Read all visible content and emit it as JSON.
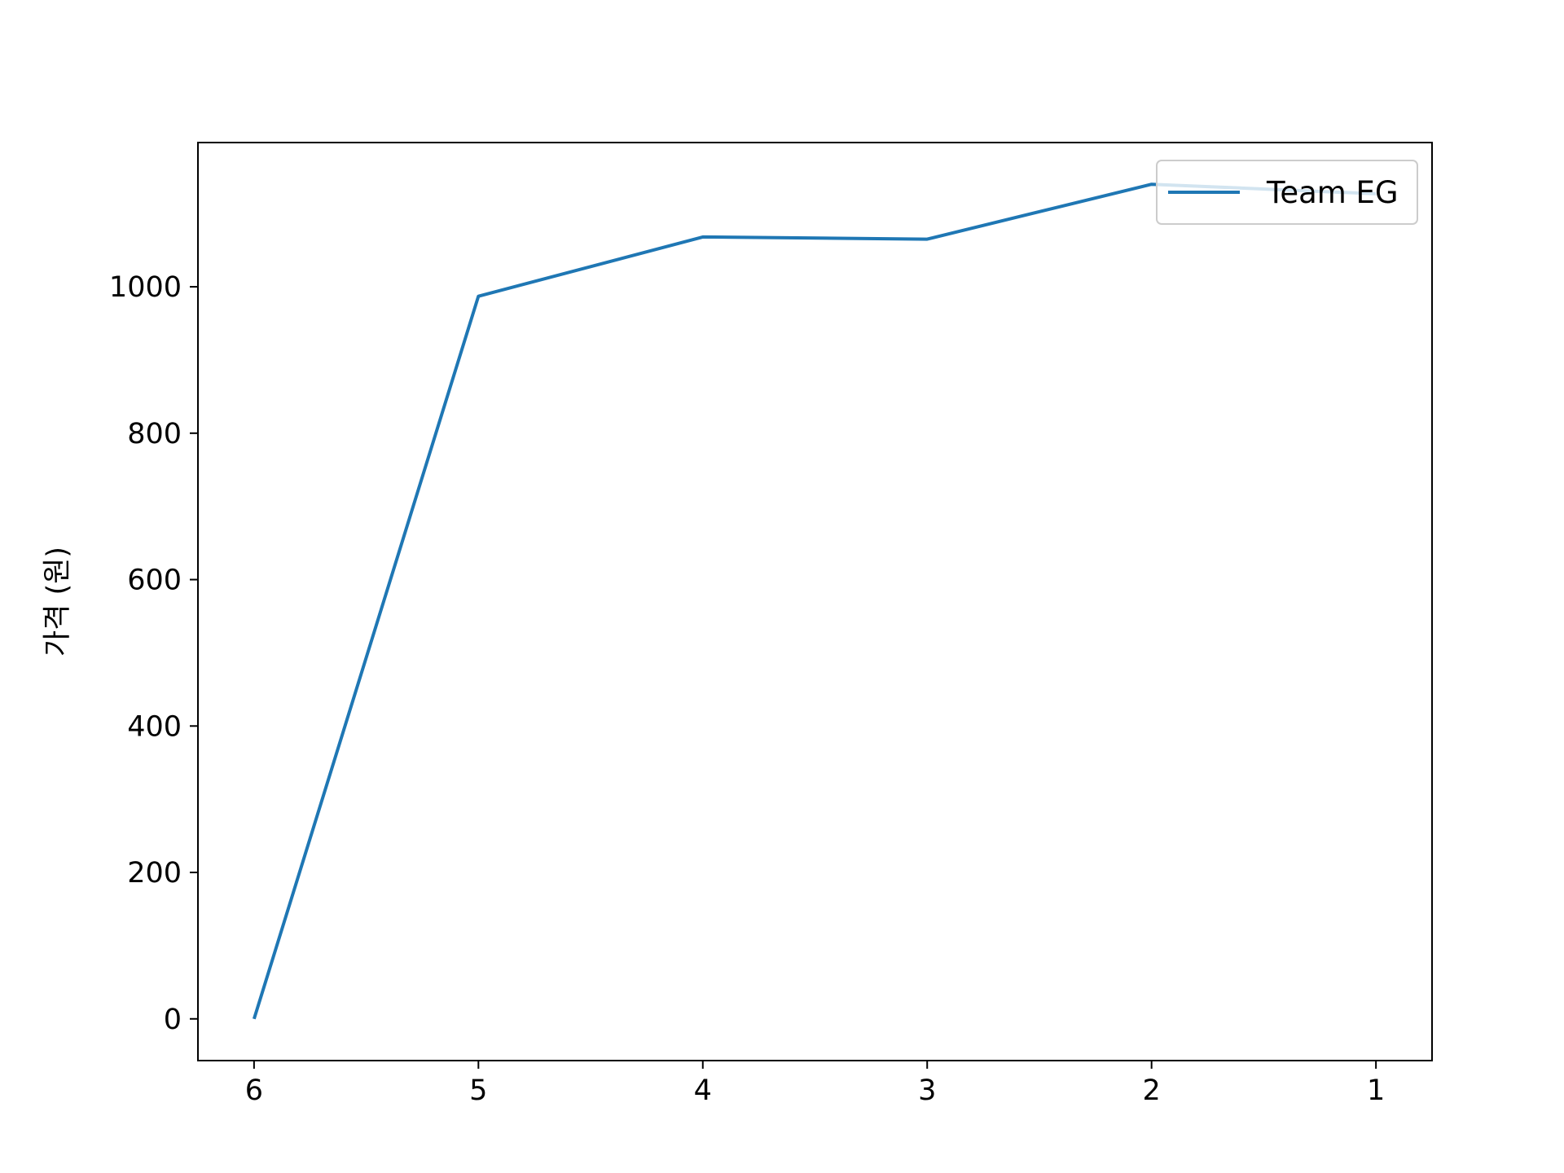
{
  "chart_data": {
    "type": "line",
    "title": "",
    "xlabel": "",
    "ylabel": "가격 (원)",
    "x": [
      6,
      5,
      4,
      3,
      2,
      1
    ],
    "x_tick_labels": [
      "6",
      "5",
      "4",
      "3",
      "2",
      "1"
    ],
    "x_inverted": true,
    "xlim": [
      6.25,
      0.75
    ],
    "y_ticks": [
      0,
      200,
      400,
      600,
      800,
      1000
    ],
    "y_tick_labels": [
      "0",
      "200",
      "400",
      "600",
      "800",
      "1000"
    ],
    "ylim": [
      -57,
      1197
    ],
    "grid": false,
    "legend": "top-right",
    "series": [
      {
        "name": "Team EG",
        "color": "#1f77b4",
        "values": [
          0,
          987,
          1068,
          1065,
          1140,
          1127
        ]
      }
    ]
  }
}
